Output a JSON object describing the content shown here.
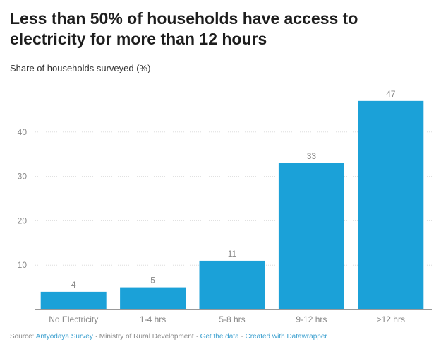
{
  "header": {
    "title": "Less than 50% of households have access to electricity for more than 12 hours",
    "subtitle": "Share of households surveyed (%)"
  },
  "footer": {
    "source_label": "Source:",
    "source_link": "Antyodaya Survey",
    "source_rest": "· Ministry of Rural Development ·",
    "get_data": "Get the data",
    "separator": "·",
    "created_with": "Created with Datawrapper"
  },
  "colors": {
    "bar": "#1ba1d8",
    "grid": "#dddddd",
    "axis": "#333333",
    "tick_text": "#888888"
  },
  "chart_data": {
    "type": "bar",
    "categories": [
      "No Electricity",
      "1-4 hrs",
      "5-8 hrs",
      "9-12 hrs",
      ">12 hrs"
    ],
    "values": [
      4,
      5,
      11,
      33,
      47
    ],
    "title": "Less than 50% of households have access to electricity for more than 12 hours",
    "ylabel": "Share of households surveyed (%)",
    "yticks": [
      10,
      20,
      30,
      40
    ],
    "ylim": [
      0,
      50
    ],
    "grid": true
  }
}
